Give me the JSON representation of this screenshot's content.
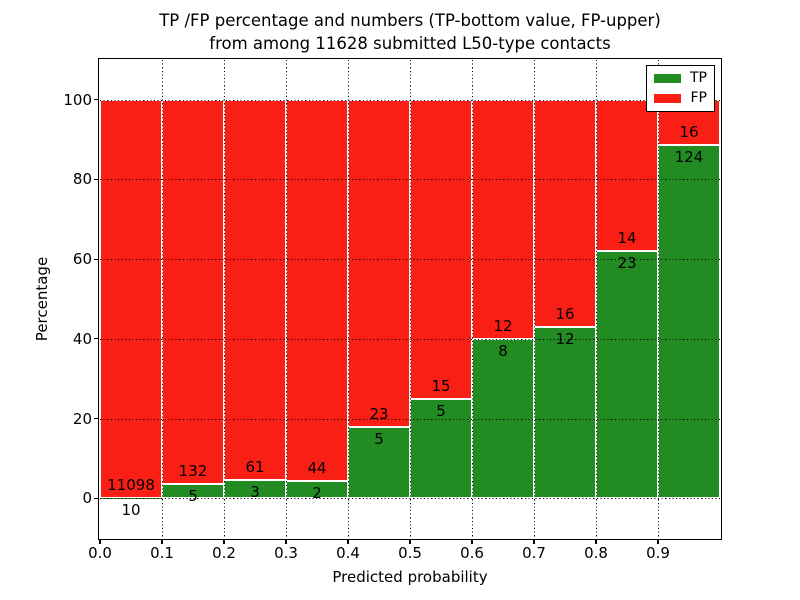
{
  "header": {
    "title_line1": "TP /FP percentage and numbers (TP-bottom value, FP-upper)",
    "title_line2": "from among 11628 submitted L50-type contacts"
  },
  "axes": {
    "xlabel": "Predicted probability",
    "ylabel": "Percentage",
    "x_tick_labels": [
      "0.0",
      "0.1",
      "0.2",
      "0.3",
      "0.4",
      "0.5",
      "0.6",
      "0.7",
      "0.8",
      "0.9"
    ],
    "y_tick_labels": [
      "0",
      "20",
      "40",
      "60",
      "80",
      "100"
    ]
  },
  "legend": {
    "items": [
      {
        "label": "TP",
        "color": "#228b22"
      },
      {
        "label": "FP",
        "color": "#fa1f15"
      }
    ]
  },
  "chart_data": {
    "type": "bar",
    "stacked": true,
    "orientation": "vertical",
    "title": "TP /FP percentage and numbers (TP-bottom value, FP-upper)\nfrom among 11628 submitted L50-type contacts",
    "xlabel": "Predicted probability",
    "ylabel": "Percentage",
    "xlim": [
      0.0,
      1.0
    ],
    "ylim": [
      -10,
      110
    ],
    "grid": "dotted",
    "legend_position": "upper right",
    "total_contacts": 11628,
    "bin_width": 0.1,
    "bin_starts": [
      0.0,
      0.1,
      0.2,
      0.3,
      0.4,
      0.5,
      0.6,
      0.7,
      0.8,
      0.9
    ],
    "x_tick_values": [
      0.0,
      0.1,
      0.2,
      0.3,
      0.4,
      0.5,
      0.6,
      0.7,
      0.8,
      0.9
    ],
    "y_tick_values": [
      0,
      20,
      40,
      60,
      80,
      100
    ],
    "series": [
      {
        "name": "TP",
        "color": "#228b22",
        "counts": [
          10,
          5,
          3,
          2,
          5,
          5,
          8,
          12,
          23,
          124
        ]
      },
      {
        "name": "FP",
        "color": "#fa1f15",
        "counts": [
          11098,
          132,
          61,
          44,
          23,
          15,
          12,
          16,
          14,
          16
        ]
      }
    ],
    "tp_percent": [
      0.09,
      3.65,
      4.69,
      4.35,
      17.86,
      25.0,
      40.0,
      42.86,
      62.16,
      88.57
    ],
    "label_rule": "TP count printed below the TP/FP boundary, FP count printed above it"
  }
}
